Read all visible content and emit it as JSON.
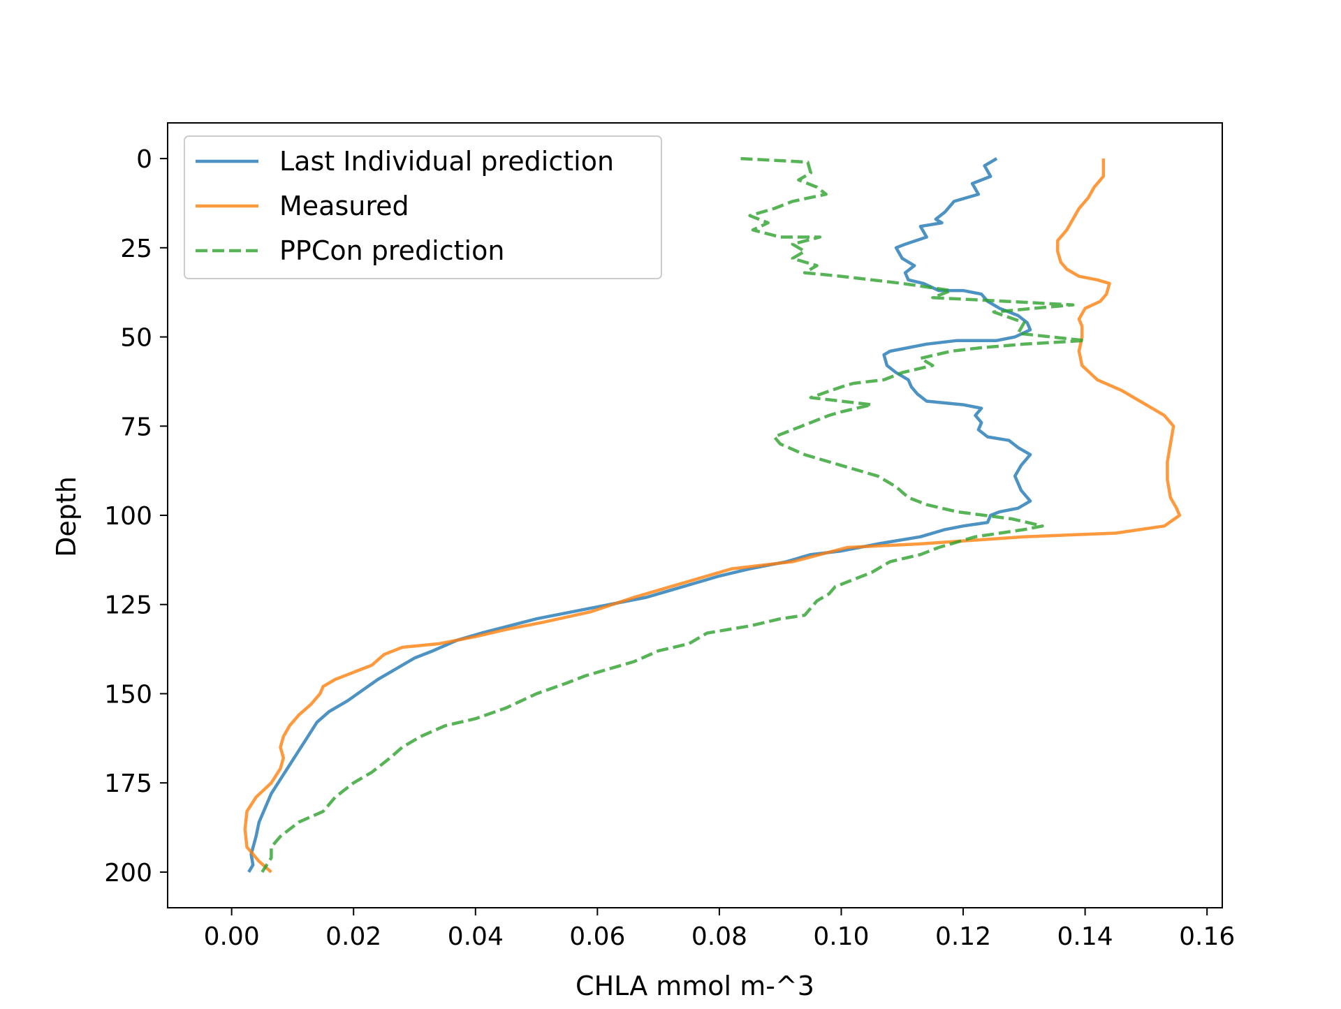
{
  "chart_data": {
    "type": "line",
    "title": "",
    "xlabel": "CHLA mmol m-^3",
    "ylabel": "Depth",
    "xlim": [
      -0.0105,
      0.1625
    ],
    "ylim": [
      210,
      -10
    ],
    "y_inverted": true,
    "grid": false,
    "legend_position": "top-left",
    "xticks": [
      0.0,
      0.02,
      0.04,
      0.06,
      0.08,
      0.1,
      0.12,
      0.14,
      0.16
    ],
    "xtick_labels": [
      "0.00",
      "0.02",
      "0.04",
      "0.06",
      "0.08",
      "0.10",
      "0.12",
      "0.14",
      "0.16"
    ],
    "yticks": [
      0,
      25,
      50,
      75,
      100,
      125,
      150,
      175,
      200
    ],
    "ytick_labels": [
      "0",
      "25",
      "50",
      "75",
      "100",
      "125",
      "150",
      "175",
      "200"
    ],
    "series": [
      {
        "name": "Last Individual prediction",
        "color": "#1f77b4",
        "style": "solid",
        "points": [
          [
            0.1255,
            0
          ],
          [
            0.1235,
            2
          ],
          [
            0.1245,
            5
          ],
          [
            0.1215,
            7
          ],
          [
            0.1225,
            10
          ],
          [
            0.1185,
            12
          ],
          [
            0.117,
            15
          ],
          [
            0.1155,
            17
          ],
          [
            0.1165,
            18
          ],
          [
            0.113,
            19
          ],
          [
            0.114,
            22
          ],
          [
            0.1105,
            24
          ],
          [
            0.109,
            25
          ],
          [
            0.11,
            28
          ],
          [
            0.112,
            30
          ],
          [
            0.1105,
            32
          ],
          [
            0.111,
            34
          ],
          [
            0.1135,
            35
          ],
          [
            0.116,
            37
          ],
          [
            0.12,
            37
          ],
          [
            0.123,
            38
          ],
          [
            0.124,
            40
          ],
          [
            0.126,
            42
          ],
          [
            0.129,
            44
          ],
          [
            0.1305,
            46
          ],
          [
            0.131,
            48
          ],
          [
            0.1285,
            50
          ],
          [
            0.1255,
            51
          ],
          [
            0.119,
            51
          ],
          [
            0.114,
            52
          ],
          [
            0.108,
            54
          ],
          [
            0.107,
            55
          ],
          [
            0.1075,
            58
          ],
          [
            0.109,
            60
          ],
          [
            0.111,
            62
          ],
          [
            0.1115,
            64
          ],
          [
            0.1125,
            66
          ],
          [
            0.114,
            68
          ],
          [
            0.12,
            69
          ],
          [
            0.123,
            70
          ],
          [
            0.122,
            72
          ],
          [
            0.123,
            74
          ],
          [
            0.1225,
            76
          ],
          [
            0.124,
            78
          ],
          [
            0.1275,
            79
          ],
          [
            0.129,
            81
          ],
          [
            0.131,
            83
          ],
          [
            0.1295,
            86
          ],
          [
            0.1285,
            89
          ],
          [
            0.1295,
            93
          ],
          [
            0.131,
            96
          ],
          [
            0.129,
            98
          ],
          [
            0.126,
            99
          ],
          [
            0.1245,
            100
          ],
          [
            0.124,
            102
          ],
          [
            0.12,
            103
          ],
          [
            0.117,
            104
          ],
          [
            0.113,
            106
          ],
          [
            0.106,
            108
          ],
          [
            0.1,
            110
          ],
          [
            0.095,
            111
          ],
          [
            0.091,
            113
          ],
          [
            0.085,
            115
          ],
          [
            0.08,
            117
          ],
          [
            0.076,
            119
          ],
          [
            0.072,
            121
          ],
          [
            0.068,
            123
          ],
          [
            0.062,
            125
          ],
          [
            0.056,
            127
          ],
          [
            0.05,
            129
          ],
          [
            0.0455,
            131
          ],
          [
            0.041,
            133
          ],
          [
            0.037,
            135
          ],
          [
            0.033,
            138
          ],
          [
            0.03,
            140
          ],
          [
            0.027,
            143
          ],
          [
            0.024,
            146
          ],
          [
            0.0215,
            149
          ],
          [
            0.019,
            152
          ],
          [
            0.016,
            155
          ],
          [
            0.014,
            158
          ],
          [
            0.0125,
            162
          ],
          [
            0.011,
            166
          ],
          [
            0.0095,
            170
          ],
          [
            0.008,
            174
          ],
          [
            0.0065,
            178
          ],
          [
            0.0055,
            182
          ],
          [
            0.0045,
            186
          ],
          [
            0.004,
            190
          ],
          [
            0.0032,
            195
          ],
          [
            0.0035,
            198
          ],
          [
            0.0028,
            200
          ]
        ]
      },
      {
        "name": "Measured",
        "color": "#ff7f0e",
        "style": "solid",
        "points": [
          [
            0.143,
            0
          ],
          [
            0.143,
            5
          ],
          [
            0.1415,
            8
          ],
          [
            0.1405,
            11
          ],
          [
            0.139,
            14
          ],
          [
            0.138,
            17
          ],
          [
            0.137,
            20
          ],
          [
            0.1355,
            23
          ],
          [
            0.1355,
            26
          ],
          [
            0.136,
            29
          ],
          [
            0.137,
            31
          ],
          [
            0.139,
            33
          ],
          [
            0.142,
            34
          ],
          [
            0.144,
            35
          ],
          [
            0.1435,
            38
          ],
          [
            0.1425,
            40
          ],
          [
            0.14,
            42
          ],
          [
            0.139,
            45
          ],
          [
            0.1395,
            47
          ],
          [
            0.1395,
            50
          ],
          [
            0.139,
            54
          ],
          [
            0.1395,
            58
          ],
          [
            0.142,
            62
          ],
          [
            0.146,
            65
          ],
          [
            0.149,
            68
          ],
          [
            0.153,
            72
          ],
          [
            0.1545,
            75
          ],
          [
            0.154,
            80
          ],
          [
            0.1535,
            85
          ],
          [
            0.1535,
            90
          ],
          [
            0.154,
            95
          ],
          [
            0.155,
            98
          ],
          [
            0.1555,
            100
          ],
          [
            0.153,
            103
          ],
          [
            0.145,
            105
          ],
          [
            0.13,
            106
          ],
          [
            0.113,
            108
          ],
          [
            0.101,
            109
          ],
          [
            0.092,
            113
          ],
          [
            0.082,
            115
          ],
          [
            0.078,
            117
          ],
          [
            0.072,
            120
          ],
          [
            0.066,
            123
          ],
          [
            0.059,
            127
          ],
          [
            0.051,
            130
          ],
          [
            0.045,
            132
          ],
          [
            0.04,
            134
          ],
          [
            0.034,
            136
          ],
          [
            0.028,
            137
          ],
          [
            0.025,
            139
          ],
          [
            0.023,
            142
          ],
          [
            0.02,
            144
          ],
          [
            0.017,
            146
          ],
          [
            0.015,
            148
          ],
          [
            0.0145,
            150
          ],
          [
            0.013,
            153
          ],
          [
            0.011,
            156
          ],
          [
            0.0095,
            159
          ],
          [
            0.0085,
            162
          ],
          [
            0.008,
            165
          ],
          [
            0.0085,
            168
          ],
          [
            0.008,
            171
          ],
          [
            0.0065,
            175
          ],
          [
            0.004,
            179
          ],
          [
            0.0025,
            183
          ],
          [
            0.0022,
            188
          ],
          [
            0.0025,
            193
          ],
          [
            0.0045,
            197
          ],
          [
            0.0065,
            200
          ]
        ]
      },
      {
        "name": "PPCon prediction",
        "color": "#2ca02c",
        "style": "dashed",
        "points": [
          [
            0.0835,
            0
          ],
          [
            0.0945,
            1
          ],
          [
            0.095,
            4
          ],
          [
            0.093,
            6
          ],
          [
            0.096,
            8
          ],
          [
            0.0975,
            10
          ],
          [
            0.092,
            12
          ],
          [
            0.089,
            14
          ],
          [
            0.085,
            16
          ],
          [
            0.088,
            18
          ],
          [
            0.0855,
            20
          ],
          [
            0.09,
            22
          ],
          [
            0.0965,
            22
          ],
          [
            0.092,
            24
          ],
          [
            0.094,
            26
          ],
          [
            0.092,
            28
          ],
          [
            0.096,
            30
          ],
          [
            0.094,
            32
          ],
          [
            0.1,
            33
          ],
          [
            0.105,
            34
          ],
          [
            0.11,
            35
          ],
          [
            0.118,
            37
          ],
          [
            0.115,
            39
          ],
          [
            0.127,
            40
          ],
          [
            0.138,
            41
          ],
          [
            0.125,
            43
          ],
          [
            0.13,
            46
          ],
          [
            0.129,
            49
          ],
          [
            0.14,
            51
          ],
          [
            0.13,
            52
          ],
          [
            0.123,
            53
          ],
          [
            0.118,
            54
          ],
          [
            0.113,
            56
          ],
          [
            0.115,
            58
          ],
          [
            0.11,
            60
          ],
          [
            0.107,
            62
          ],
          [
            0.102,
            63
          ],
          [
            0.1,
            64
          ],
          [
            0.095,
            67
          ],
          [
            0.1,
            68
          ],
          [
            0.105,
            69
          ],
          [
            0.1,
            71
          ],
          [
            0.098,
            72
          ],
          [
            0.095,
            74
          ],
          [
            0.092,
            76
          ],
          [
            0.089,
            78
          ],
          [
            0.09,
            80
          ],
          [
            0.094,
            83
          ],
          [
            0.098,
            85
          ],
          [
            0.102,
            87
          ],
          [
            0.106,
            89
          ],
          [
            0.109,
            92
          ],
          [
            0.111,
            95
          ],
          [
            0.114,
            97
          ],
          [
            0.119,
            99
          ],
          [
            0.128,
            101
          ],
          [
            0.133,
            103
          ],
          [
            0.13,
            104
          ],
          [
            0.122,
            106
          ],
          [
            0.116,
            109
          ],
          [
            0.113,
            111
          ],
          [
            0.108,
            113
          ],
          [
            0.105,
            116
          ],
          [
            0.102,
            118
          ],
          [
            0.099,
            120
          ],
          [
            0.098,
            122
          ],
          [
            0.096,
            124
          ],
          [
            0.094,
            128
          ],
          [
            0.09,
            129
          ],
          [
            0.085,
            131
          ],
          [
            0.078,
            133
          ],
          [
            0.075,
            136
          ],
          [
            0.07,
            138
          ],
          [
            0.066,
            141
          ],
          [
            0.062,
            143
          ],
          [
            0.058,
            145
          ],
          [
            0.055,
            147
          ],
          [
            0.05,
            150
          ],
          [
            0.045,
            154
          ],
          [
            0.04,
            157
          ],
          [
            0.035,
            159
          ],
          [
            0.031,
            162
          ],
          [
            0.028,
            165
          ],
          [
            0.026,
            168
          ],
          [
            0.023,
            172
          ],
          [
            0.02,
            175
          ],
          [
            0.017,
            179
          ],
          [
            0.015,
            183
          ],
          [
            0.011,
            186
          ],
          [
            0.008,
            190
          ],
          [
            0.0065,
            193
          ],
          [
            0.0065,
            196
          ],
          [
            0.005,
            200
          ]
        ]
      }
    ]
  }
}
